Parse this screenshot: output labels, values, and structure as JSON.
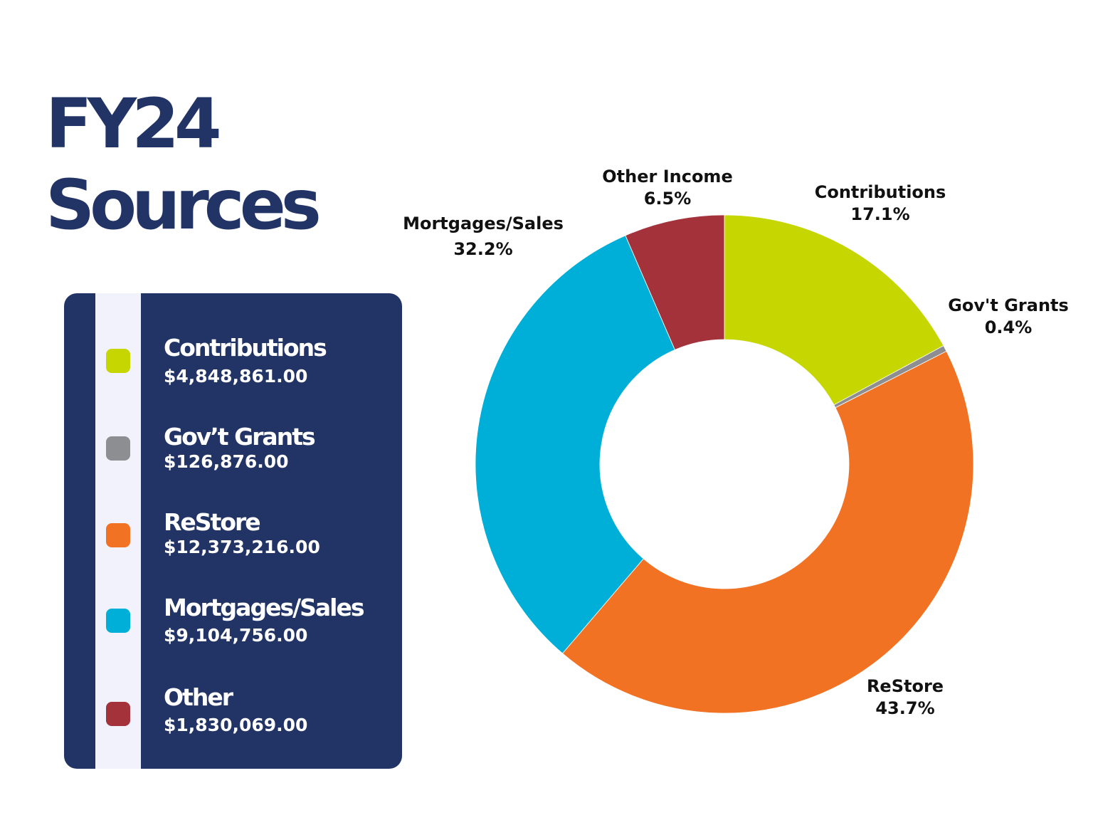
{
  "title": {
    "line1": "FY24",
    "line2": "Sources"
  },
  "legend": [
    {
      "label": "Contributions",
      "amount": "$4,848,861.00",
      "color": "#c5d600"
    },
    {
      "label": "Gov’t Grants",
      "amount": "$126,876.00",
      "color": "#8c8e91"
    },
    {
      "label": "ReStore",
      "amount": "$12,373,216.00",
      "color": "#f27224"
    },
    {
      "label": "Mortgages/Sales",
      "amount": "$9,104,756.00",
      "color": "#00afd7"
    },
    {
      "label": "Other",
      "amount": "$1,830,069.00",
      "color": "#a3323b"
    }
  ],
  "chart_data": {
    "type": "pie",
    "donut": true,
    "start": "top, clockwise",
    "categories": [
      "Contributions",
      "Gov't Grants",
      "ReStore",
      "Mortgages/Sales",
      "Other Income"
    ],
    "values": [
      17.1,
      0.4,
      43.7,
      32.2,
      6.5
    ],
    "data_labels": [
      "17.1%",
      "0.4%",
      "43.7%",
      "32.2%",
      "6.5%"
    ],
    "colors": [
      "#c5d600",
      "#8c8e91",
      "#f27224",
      "#00afd7",
      "#a3323b"
    ]
  }
}
